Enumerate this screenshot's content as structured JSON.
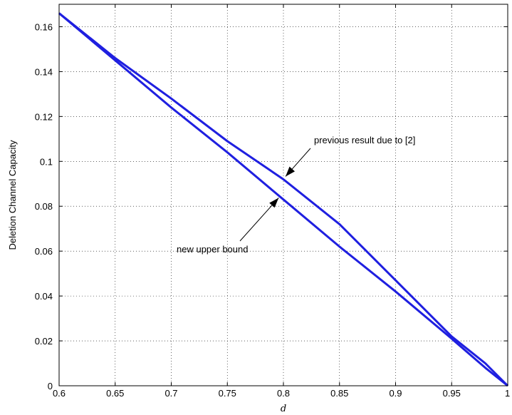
{
  "chart_data": {
    "type": "line",
    "xlabel": "d",
    "ylabel": "Deletion Channel Capacity",
    "xlim": [
      0.6,
      1.0
    ],
    "ylim": [
      0,
      0.17
    ],
    "grid": true,
    "xticks": [
      "0.6",
      "0.65",
      "0.7",
      "0.75",
      "0.8",
      "0.85",
      "0.9",
      "0.95",
      "1"
    ],
    "yticks": [
      "0",
      "0.02",
      "0.04",
      "0.06",
      "0.08",
      "0.1",
      "0.12",
      "0.14",
      "0.16"
    ],
    "line_color": "#1f1fe0",
    "series": [
      {
        "x": [
          0.6,
          0.65,
          0.7,
          0.75,
          0.8,
          0.85,
          0.9,
          0.95,
          0.98,
          1.0
        ],
        "y": [
          0.166,
          0.145,
          0.124,
          0.104,
          0.083,
          0.062,
          0.042,
          0.021,
          0.008,
          0.0
        ]
      },
      {
        "x": [
          0.6,
          0.65,
          0.7,
          0.75,
          0.8,
          0.85,
          0.9,
          0.95,
          0.98,
          1.0
        ],
        "y": [
          0.166,
          0.146,
          0.128,
          0.109,
          0.092,
          0.072,
          0.047,
          0.022,
          0.01,
          0.0
        ]
      }
    ],
    "annotations": [
      {
        "text": "previous result due to [2]",
        "x": 0.8,
        "y": 0.092
      },
      {
        "text": "new upper bound",
        "x": 0.797,
        "y": 0.085
      }
    ]
  }
}
